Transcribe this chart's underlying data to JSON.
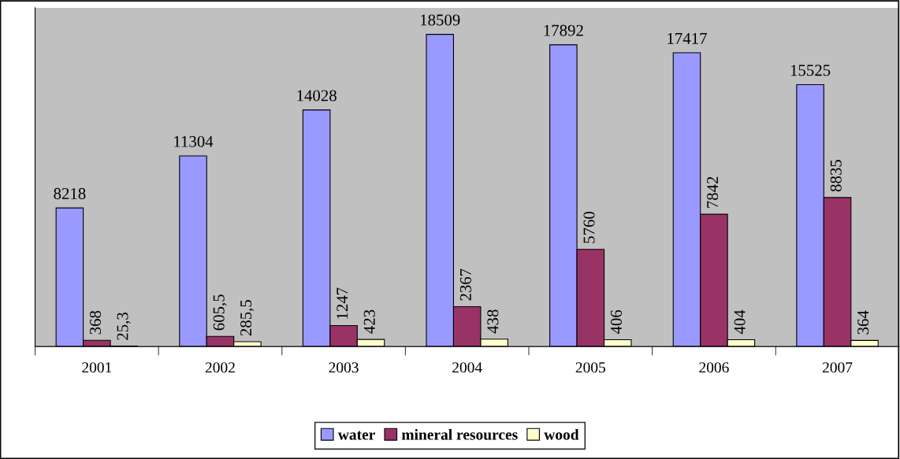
{
  "chart_data": {
    "type": "bar",
    "categories": [
      "2001",
      "2002",
      "2003",
      "2004",
      "2005",
      "2006",
      "2007"
    ],
    "series": [
      {
        "name": "water",
        "color": "#9999ff",
        "values": [
          8218,
          11304,
          14028,
          18509,
          17892,
          17417,
          15525
        ],
        "value_labels": [
          "8218",
          "11304",
          "14028",
          "18509",
          "17892",
          "17417",
          "15525"
        ]
      },
      {
        "name": "mineral resources",
        "color": "#993366",
        "values": [
          368,
          605.5,
          1247,
          2367,
          5760,
          7842,
          8835
        ],
        "value_labels": [
          "368",
          "605,5",
          "1247",
          "2367",
          "5760",
          "7842",
          "8835"
        ]
      },
      {
        "name": "wood",
        "color": "#ffffcc",
        "values": [
          25.3,
          285.5,
          423,
          438,
          406,
          404,
          364
        ],
        "value_labels": [
          "25,3",
          "285,5",
          "423",
          "438",
          "406",
          "404",
          "364"
        ]
      }
    ],
    "grid": false,
    "legend": "bottom"
  }
}
